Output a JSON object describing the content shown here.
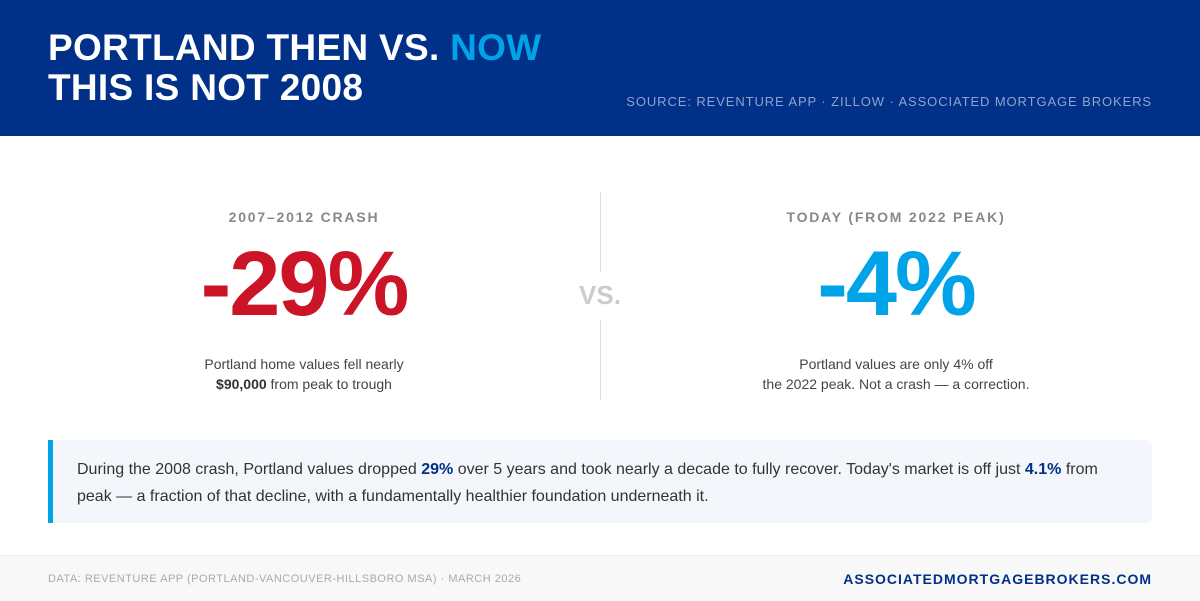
{
  "header": {
    "title_line1_prefix": "PORTLAND THEN VS. ",
    "title_line1_accent": "NOW",
    "title_line2": "THIS IS NOT 2008",
    "source": "SOURCE: REVENTURE APP · ZILLOW · ASSOCIATED MORTGAGE BROKERS"
  },
  "comparison": {
    "left": {
      "kicker": "2007–2012 CRASH",
      "value": "-29%",
      "desc_line1": "Portland home values fell nearly",
      "desc_bold": "$90,000",
      "desc_line2_rest": " from peak to trough",
      "color": "#cc1427"
    },
    "vs_label": "VS.",
    "right": {
      "kicker": "TODAY (FROM 2022 PEAK)",
      "value": "-4%",
      "desc_line1": "Portland values are only 4% off",
      "desc_line2": "the 2022 peak. Not a crash — a correction.",
      "color": "#00a3e8"
    }
  },
  "callout": {
    "part1": "During the 2008 crash, Portland values dropped ",
    "bold1": "29%",
    "part2": " over 5 years and took nearly a decade to fully recover. Today's market is off just ",
    "bold2": "4.1%",
    "part3": " from peak — a fraction of that decline, with a fundamentally healthier foundation underneath it."
  },
  "footer": {
    "data_note": "DATA: REVENTURE APP (PORTLAND-VANCOUVER-HILLSBORO MSA) · MARCH 2026",
    "website": "ASSOCIATEDMORTGAGEBROKERS.COM"
  },
  "colors": {
    "brand_navy": "#003087",
    "accent_blue": "#00a3e8",
    "crash_red": "#cc1427"
  }
}
